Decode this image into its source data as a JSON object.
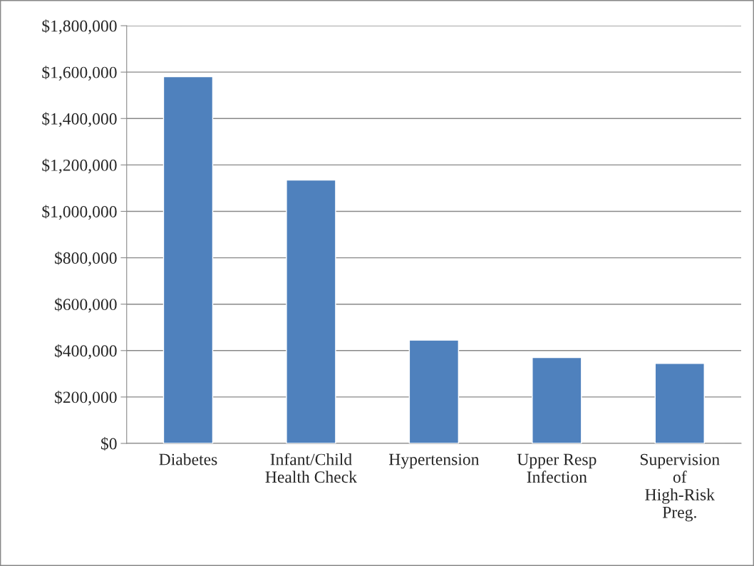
{
  "chart_data": {
    "type": "bar",
    "categories": [
      "Diabetes",
      "Infant/Child\nHealth Check",
      "Hypertension",
      "Upper Resp\nInfection",
      "Supervision\nof\nHigh-Risk\nPreg."
    ],
    "values": [
      1580000,
      1135000,
      445000,
      370000,
      345000
    ],
    "color": "#4f81bd",
    "ylim": [
      0,
      1800000
    ],
    "yticks": [
      {
        "value": 0,
        "label": "$0"
      },
      {
        "value": 200000,
        "label": "$200,000"
      },
      {
        "value": 400000,
        "label": "$400,000"
      },
      {
        "value": 600000,
        "label": "$600,000"
      },
      {
        "value": 800000,
        "label": "$800,000"
      },
      {
        "value": 1000000,
        "label": "$1,000,000"
      },
      {
        "value": 1200000,
        "label": "$1,200,000"
      },
      {
        "value": 1400000,
        "label": "$1,400,000"
      },
      {
        "value": 1600000,
        "label": "$1,600,000"
      },
      {
        "value": 1800000,
        "label": "$1,800,000"
      }
    ],
    "grid": "y",
    "legend": false
  }
}
